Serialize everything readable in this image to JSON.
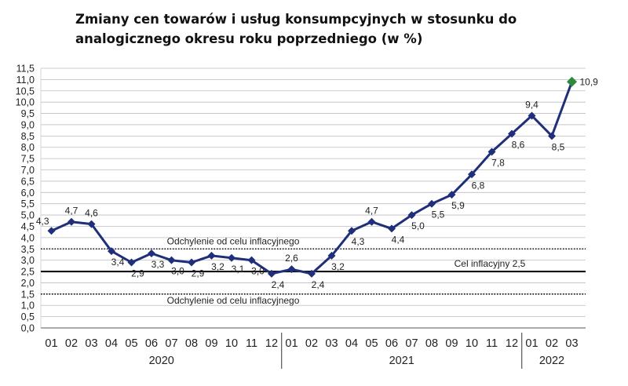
{
  "title": "Zmiany cen towarów i usług konsumpcyjnych  w stosunku do analogicznego okresu roku poprzedniego (w %)",
  "chart_data": {
    "type": "line",
    "title": "Zmiany cen towarów i usług konsumpcyjnych  w stosunku do analogicznego okresu roku poprzedniego (w %)",
    "xlabel": "",
    "ylabel": "",
    "ylim": [
      0,
      11.5
    ],
    "y_ticks": [
      "0,0",
      "0,5",
      "1,0",
      "1,5",
      "2,0",
      "2,5",
      "3,0",
      "3,5",
      "4,0",
      "4,5",
      "5,0",
      "5,5",
      "6,0",
      "6,5",
      "7,0",
      "7,5",
      "8,0",
      "8,5",
      "9,0",
      "9,5",
      "10,0",
      "10,5",
      "11,0",
      "11,5"
    ],
    "grid": true,
    "x_tick_labels": [
      "01",
      "02",
      "03",
      "04",
      "05",
      "06",
      "07",
      "08",
      "09",
      "10",
      "11",
      "12",
      "01",
      "02",
      "03",
      "04",
      "05",
      "06",
      "07",
      "08",
      "09",
      "10",
      "11",
      "12",
      "01",
      "02",
      "03"
    ],
    "years": [
      {
        "label": "2020",
        "from": 0,
        "to": 11
      },
      {
        "label": "2021",
        "from": 12,
        "to": 23
      },
      {
        "label": "2022",
        "from": 24,
        "to": 26
      }
    ],
    "series": [
      {
        "values": [
          4.3,
          4.7,
          4.6,
          3.4,
          2.9,
          3.3,
          3.0,
          2.9,
          3.2,
          3.1,
          3.0,
          2.4,
          2.6,
          2.4,
          3.2,
          4.3,
          4.7,
          4.4,
          5.0,
          5.5,
          5.9,
          6.8,
          7.8,
          8.6,
          9.4,
          8.5,
          10.9
        ],
        "value_labels": [
          "4,3",
          "4,7",
          "4,6",
          "3,4",
          "2,9",
          "3,3",
          "3,0",
          "2,9",
          "3,2",
          "3,1",
          "3,0",
          "2,4",
          "2,6",
          "2,4",
          "3,2",
          "4,3",
          "4,7",
          "4,4",
          "5,0",
          "5,5",
          "5,9",
          "6,8",
          "7,8",
          "8,6",
          "9,4",
          "8,5",
          "10,9"
        ],
        "color": "#1f2f7a",
        "last_point_color": "#2e8b3e"
      }
    ],
    "reference_lines": [
      {
        "value": 3.5,
        "style": "dotted",
        "label": "Odchylenie od celu inflacyjnego"
      },
      {
        "value": 2.5,
        "style": "solid",
        "label": "Cel inflacyjny 2,5"
      },
      {
        "value": 1.5,
        "style": "dotted",
        "label": "Odchylenie od celu inflacyjnego"
      }
    ]
  }
}
